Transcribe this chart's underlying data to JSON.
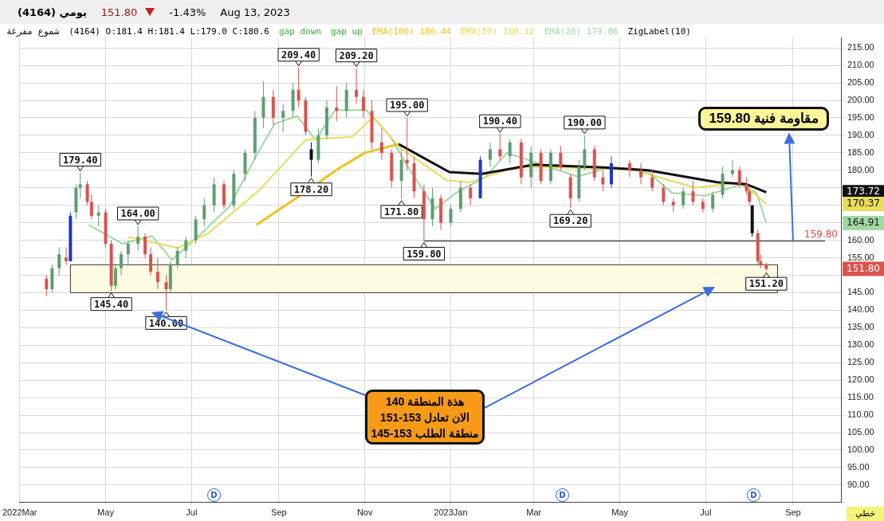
{
  "chart_data": {
    "type": "candlestick",
    "title": "(4164) يومي",
    "subtitle": "(4164) O:181.4 H:181.4 L:179.0 C:180.6",
    "annotations": [
      "151.80",
      "-1.43%",
      "Aug 13, 2023",
      "شموع مفرغة",
      "gap down",
      "gap up",
      "ZigLabel(10)",
      "هذة المنطقة 140\nالان تعادل 153-151\nمنطقة الطلب 153-145",
      "خطي",
      "D",
      "D",
      "D",
      "173.72",
      "170.37",
      "164.91",
      "151.80",
      {
        "text": "مقاومة فنية 159.80",
        "x": "2023-09-01",
        "y": 159.8
      },
      {
        "text": "179.40",
        "x": "2022-04-13",
        "y": 179.4
      },
      {
        "text": "145.40",
        "x": "2022-05-05",
        "y": 145.4
      },
      {
        "text": "164.00",
        "x": "2022-05-24",
        "y": 164
      },
      {
        "text": "140.00",
        "x": "2022-06-13",
        "y": 140
      },
      {
        "text": "209.40",
        "x": "2022-09-15",
        "y": 209.4
      },
      {
        "text": "178.20",
        "x": "2022-09-24",
        "y": 178.2
      },
      {
        "text": "209.20",
        "x": "2022-10-26",
        "y": 209.2
      },
      {
        "text": "171.80",
        "x": "2022-11-27",
        "y": 171.8
      },
      {
        "text": "195.00",
        "x": "2022-12-01",
        "y": 195
      },
      {
        "text": "159.80",
        "x": "2022-12-13",
        "y": 159.8
      },
      {
        "text": "190.40",
        "x": "2023-02-05",
        "y": 190.4
      },
      {
        "text": "169.20",
        "x": "2023-03-27",
        "y": 169.2
      },
      {
        "text": "190.00",
        "x": "2023-04-06",
        "y": 190
      },
      {
        "text": "151.20",
        "x": "2023-08-13",
        "y": 151.2
      }
    ],
    "x": [
      "2022-03-20",
      "2022-03-24",
      "2022-03-29",
      "2022-04-03",
      "2022-04-06",
      "2022-04-10",
      "2022-04-13",
      "2022-04-18",
      "2022-04-21",
      "2022-04-26",
      "2022-05-01",
      "2022-05-05",
      "2022-05-08",
      "2022-05-12",
      "2022-05-17",
      "2022-05-24",
      "2022-05-29",
      "2022-06-02",
      "2022-06-07",
      "2022-06-13",
      "2022-06-16",
      "2022-06-21",
      "2022-06-27",
      "2022-07-04",
      "2022-07-10",
      "2022-07-17",
      "2022-07-24",
      "2022-07-31",
      "2022-08-08",
      "2022-08-15",
      "2022-08-21",
      "2022-08-28",
      "2022-09-04",
      "2022-09-11",
      "2022-09-15",
      "2022-09-20",
      "2022-09-24",
      "2022-09-29",
      "2022-10-05",
      "2022-10-12",
      "2022-10-19",
      "2022-10-26",
      "2022-10-31",
      "2022-11-06",
      "2022-11-13",
      "2022-11-20",
      "2022-11-27",
      "2022-12-01",
      "2022-12-06",
      "2022-12-13",
      "2022-12-19",
      "2022-12-25",
      "2023-01-01",
      "2023-01-08",
      "2023-01-15",
      "2023-01-22",
      "2023-01-29",
      "2023-02-05",
      "2023-02-12",
      "2023-02-20",
      "2023-02-27",
      "2023-03-06",
      "2023-03-13",
      "2023-03-20",
      "2023-03-27",
      "2023-04-02",
      "2023-04-06",
      "2023-04-13",
      "2023-04-19",
      "2023-04-25",
      "2023-05-08",
      "2023-05-16",
      "2023-05-24",
      "2023-06-01",
      "2023-06-08",
      "2023-06-15",
      "2023-06-22",
      "2023-06-29",
      "2023-07-06",
      "2023-07-13",
      "2023-07-20",
      "2023-07-25",
      "2023-07-30",
      "2023-08-01",
      "2023-08-03",
      "2023-08-07",
      "2023-08-09",
      "2023-08-13"
    ],
    "ohlc": [
      [
        149,
        150,
        144,
        146
      ],
      [
        146,
        153,
        145,
        152
      ],
      [
        152,
        158,
        150,
        156
      ],
      [
        155,
        158,
        153,
        154
      ],
      [
        154,
        168,
        154,
        167
      ],
      [
        168,
        176,
        166,
        175
      ],
      [
        175,
        179.4,
        172,
        176
      ],
      [
        176,
        177,
        170,
        171
      ],
      [
        171,
        173,
        166,
        167
      ],
      [
        167,
        170,
        164,
        168
      ],
      [
        168,
        169,
        158,
        159
      ],
      [
        159,
        160,
        145.4,
        147
      ],
      [
        147,
        153,
        146,
        152
      ],
      [
        152,
        157,
        150,
        156
      ],
      [
        156,
        160,
        153,
        159
      ],
      [
        159,
        164,
        157,
        161
      ],
      [
        161,
        162,
        155,
        156
      ],
      [
        156,
        158,
        150,
        151
      ],
      [
        151,
        155,
        146,
        148
      ],
      [
        148,
        150,
        140,
        146
      ],
      [
        146,
        154,
        145,
        153
      ],
      [
        153,
        158,
        152,
        157
      ],
      [
        157,
        161,
        155,
        160
      ],
      [
        160,
        167,
        159,
        166
      ],
      [
        166,
        172,
        164,
        170
      ],
      [
        170,
        178,
        168,
        176
      ],
      [
        176,
        177,
        169,
        170
      ],
      [
        170,
        180,
        169,
        179
      ],
      [
        179,
        186,
        177,
        185
      ],
      [
        185,
        197,
        183,
        195
      ],
      [
        195,
        205.5,
        192,
        201
      ],
      [
        201,
        203,
        193,
        195
      ],
      [
        195,
        199,
        191,
        197
      ],
      [
        197,
        205,
        195,
        203
      ],
      [
        203,
        209.4,
        198,
        200
      ],
      [
        200,
        201,
        190,
        191
      ],
      [
        186,
        188,
        178.2,
        183
      ],
      [
        183,
        192,
        182,
        190
      ],
      [
        190,
        200,
        189,
        198
      ],
      [
        198,
        204,
        194,
        197
      ],
      [
        197,
        205,
        195,
        203
      ],
      [
        203,
        209.2,
        199,
        201
      ],
      [
        201,
        203,
        195,
        197
      ],
      [
        197,
        200,
        186,
        188
      ],
      [
        188,
        192,
        183,
        185
      ],
      [
        185,
        186,
        175,
        177
      ],
      [
        177,
        186,
        171.8,
        183
      ],
      [
        183,
        195,
        180,
        182
      ],
      [
        182,
        184,
        172,
        174
      ],
      [
        174,
        176,
        159.8,
        166
      ],
      [
        166,
        175,
        164,
        172
      ],
      [
        172,
        173,
        163,
        165
      ],
      [
        165,
        170,
        164,
        169
      ],
      [
        169,
        177,
        168,
        175
      ],
      [
        175,
        176,
        170,
        172
      ],
      [
        172,
        184,
        172,
        183
      ],
      [
        183,
        188,
        181,
        186
      ],
      [
        186,
        190.4,
        183,
        184
      ],
      [
        184,
        189,
        182,
        188
      ],
      [
        188,
        189,
        176,
        178
      ],
      [
        178,
        187,
        175,
        185
      ],
      [
        185,
        186,
        176,
        177
      ],
      [
        177,
        186,
        176,
        185
      ],
      [
        185,
        187,
        180,
        181
      ],
      [
        178,
        179,
        169.2,
        172
      ],
      [
        172,
        183,
        171,
        181
      ],
      [
        181,
        190,
        180,
        186
      ],
      [
        186,
        187,
        177,
        178
      ],
      [
        178,
        180,
        174,
        176
      ],
      [
        176,
        184,
        175,
        182
      ],
      [
        182,
        183,
        178,
        180
      ],
      [
        180,
        182,
        176,
        178
      ],
      [
        178,
        180,
        174,
        175
      ],
      [
        175,
        176,
        170,
        171
      ],
      [
        171,
        172,
        168,
        170
      ],
      [
        170,
        175,
        169,
        174
      ],
      [
        174,
        177,
        170,
        171
      ],
      [
        171,
        172,
        168,
        169
      ],
      [
        169,
        174,
        168,
        173
      ],
      [
        173,
        181,
        172,
        179
      ],
      [
        179,
        183,
        178,
        180
      ],
      [
        180,
        181,
        175,
        176
      ],
      [
        176,
        178,
        173,
        174
      ],
      [
        174,
        175,
        170,
        171
      ],
      [
        170,
        170,
        161,
        162
      ],
      [
        162,
        163,
        153,
        154
      ],
      [
        154,
        156,
        152,
        153
      ],
      [
        153,
        153.5,
        151.2,
        151.8
      ]
    ],
    "colors": [
      "#d9534f",
      "#5e9e72",
      "#5e9e72",
      "#d9534f",
      "#1d35c8",
      "#5e9e72",
      "#5e9e72",
      "#d9534f",
      "#d9534f",
      "#5e9e72",
      "#d9534f",
      "#d9534f",
      "#5e9e72",
      "#5e9e72",
      "#5e9e72",
      "#5e9e72",
      "#d9534f",
      "#d9534f",
      "#d9534f",
      "#d9534f",
      "#5e9e72",
      "#5e9e72",
      "#5e9e72",
      "#5e9e72",
      "#5e9e72",
      "#5e9e72",
      "#d9534f",
      "#5e9e72",
      "#5e9e72",
      "#5e9e72",
      "#5e9e72",
      "#d9534f",
      "#5e9e72",
      "#5e9e72",
      "#d9534f",
      "#d9534f",
      "#111111",
      "#5e9e72",
      "#5e9e72",
      "#d9534f",
      "#5e9e72",
      "#d9534f",
      "#d9534f",
      "#d9534f",
      "#d9534f",
      "#d9534f",
      "#5e9e72",
      "#d9534f",
      "#d9534f",
      "#d9534f",
      "#5e9e72",
      "#d9534f",
      "#5e9e72",
      "#5e9e72",
      "#d9534f",
      "#1d35c8",
      "#5e9e72",
      "#d9534f",
      "#5e9e72",
      "#d9534f",
      "#5e9e72",
      "#d9534f",
      "#5e9e72",
      "#d9534f",
      "#d9534f",
      "#5e9e72",
      "#5e9e72",
      "#d9534f",
      "#d9534f",
      "#1d35c8",
      "#d9534f",
      "#d9534f",
      "#d9534f",
      "#d9534f",
      "#d9534f",
      "#5e9e72",
      "#d9534f",
      "#d9534f",
      "#5e9e72",
      "#5e9e72",
      "#5e9e72",
      "#d9534f",
      "#d9534f",
      "#d9534f",
      "#111111",
      "#d9534f",
      "#d9534f",
      "#d9534f"
    ],
    "series": [
      {
        "type": "line",
        "name": "EMA(100) 180.44",
        "color": "#f0c020",
        "x": [
          "2022-08-16",
          "2022-09-15",
          "2022-10-13",
          "2022-11-01",
          "2022-11-25"
        ],
        "values": [
          164.4,
          172.5,
          180.4,
          185,
          187.5
        ]
      },
      {
        "type": "line",
        "color": "#111111",
        "x": [
          "2022-11-25",
          "2022-12-31",
          "2023-01-23",
          "2023-03-01",
          "2023-04-25",
          "2023-05-21",
          "2023-07-09",
          "2023-07-30",
          "2023-08-13"
        ],
        "values": [
          187.5,
          179.5,
          179,
          181.6,
          180.7,
          180,
          176.6,
          176,
          173.72
        ]
      },
      {
        "type": "line",
        "name": "EMA(50) 180.12",
        "color": "#e8dc58",
        "x": [
          "2022-05-17",
          "2022-06-21",
          "2022-07-13",
          "2022-08-18",
          "2022-09-20",
          "2022-10-23",
          "2022-11-07",
          "2022-11-26",
          "2022-12-29",
          "2023-01-14",
          "2023-02-17",
          "2023-05-10",
          "2023-06-24",
          "2023-07-26",
          "2023-08-13"
        ],
        "values": [
          161,
          157.8,
          162,
          174.3,
          188.7,
          189.6,
          195.3,
          186.4,
          177.2,
          176.5,
          181.1,
          180.2,
          175,
          176.6,
          170.37
        ]
      },
      {
        "type": "line",
        "name": "EMA(20) 179.86",
        "color": "#9fd9a4",
        "x": [
          "2022-04-19",
          "2022-05-13",
          "2022-06-03",
          "2022-06-17",
          "2022-07-06",
          "2022-07-28",
          "2022-08-18",
          "2022-08-29",
          "2022-09-14",
          "2022-09-27",
          "2022-10-11",
          "2022-11-02",
          "2022-11-18",
          "2022-12-04",
          "2022-12-21",
          "2023-01-05",
          "2023-01-26",
          "2023-02-10",
          "2023-04-01",
          "2023-04-22",
          "2023-05-21",
          "2023-06-07",
          "2023-06-30",
          "2023-07-26",
          "2023-08-06",
          "2023-08-13"
        ],
        "values": [
          164.4,
          159,
          161.2,
          154.4,
          161.2,
          169.7,
          185.7,
          193.3,
          195.5,
          188.7,
          197.2,
          197.2,
          190.3,
          179.5,
          169,
          173.6,
          178.2,
          185,
          178.2,
          180.7,
          179.5,
          173.6,
          172.7,
          175.9,
          173.6,
          164.91
        ]
      }
    ],
    "ref_lines": [
      {
        "axis": "y",
        "value": 159.8,
        "label": "159.80",
        "color": "#555555"
      }
    ],
    "bands": [
      {
        "axis": "y",
        "from": 145,
        "to": 153,
        "color": "#fdfbe2"
      }
    ],
    "xlim": [
      "2022-03-01",
      "2023-10-05"
    ],
    "xticks": [
      {
        "value": "2022-03-01",
        "label": "2022Mar"
      },
      {
        "value": "2022-05-01",
        "label": "May"
      },
      {
        "value": "2022-07-01",
        "label": "Jul"
      },
      {
        "value": "2022-09-01",
        "label": "Sep"
      },
      {
        "value": "2022-11-01",
        "label": "Nov"
      },
      {
        "value": "2023-01-01",
        "label": "2023Jan"
      },
      {
        "value": "2023-03-01",
        "label": "Mar"
      },
      {
        "value": "2023-05-01",
        "label": "May"
      },
      {
        "value": "2023-07-01",
        "label": "Jul"
      },
      {
        "value": "2023-09-01",
        "label": "Sep"
      }
    ],
    "ylim": [
      85,
      218
    ],
    "yticks": [
      {
        "value": 85,
        "label": null
      },
      {
        "value": 90,
        "label": "90.00"
      },
      {
        "value": 95,
        "label": "95.00"
      },
      {
        "value": 100,
        "label": "100.00"
      },
      {
        "value": 105,
        "label": "105.00"
      },
      {
        "value": 110,
        "label": "110.00"
      },
      {
        "value": 115,
        "label": "115.00"
      },
      {
        "value": 120,
        "label": "120.00"
      },
      {
        "value": 125,
        "label": "125.00"
      },
      {
        "value": 130,
        "label": "130.00"
      },
      {
        "value": 135,
        "label": "135.00"
      },
      {
        "value": 140,
        "label": "140.00"
      },
      {
        "value": 145,
        "label": "145.00"
      },
      {
        "value": 150,
        "label": null
      },
      {
        "value": 155,
        "label": "155.00"
      },
      {
        "value": 160,
        "label": "160.00"
      },
      {
        "value": 165,
        "label": null
      },
      {
        "value": 170,
        "label": null
      },
      {
        "value": 175,
        "label": null
      },
      {
        "value": 180,
        "label": "180.00"
      },
      {
        "value": 185,
        "label": "185.00"
      },
      {
        "value": 190,
        "label": "190.00"
      },
      {
        "value": 195,
        "label": "195.00"
      },
      {
        "value": 200,
        "label": "200.00"
      },
      {
        "value": 205,
        "label": "205.00"
      },
      {
        "value": 210,
        "label": "210.00"
      },
      {
        "value": 215,
        "label": "215.00"
      }
    ],
    "grid": true,
    "legend": "top",
    "marker": "none",
    "line_style": "solid"
  }
}
